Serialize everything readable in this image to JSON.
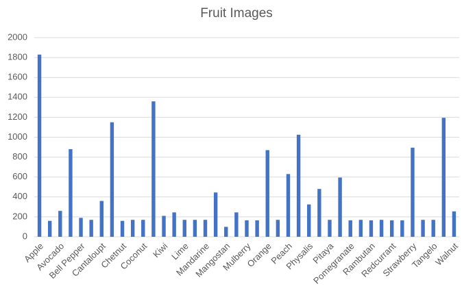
{
  "chart_data": {
    "type": "bar",
    "title": "Fruit Images",
    "categories": [
      "Apple",
      null,
      "Avocado",
      null,
      "Bell Pepper",
      null,
      "Cantaloupt",
      null,
      "Chetnut",
      null,
      "Coconut",
      null,
      "Kiwi",
      null,
      "Lime",
      null,
      "Mandarine",
      null,
      "Mangostan",
      null,
      "Mulberry",
      null,
      "Orange",
      null,
      "Peach",
      null,
      "Physalis",
      null,
      "Pitaya",
      null,
      "Pomegranate",
      null,
      "Rambutan",
      null,
      "Redcurrant",
      null,
      "Strawberry",
      null,
      "Tangelo",
      null,
      "Walnut"
    ],
    "values": [
      1830,
      160,
      260,
      880,
      190,
      170,
      360,
      1150,
      160,
      170,
      170,
      1360,
      210,
      245,
      170,
      170,
      170,
      445,
      100,
      245,
      165,
      165,
      870,
      170,
      630,
      1025,
      325,
      480,
      170,
      595,
      165,
      170,
      165,
      170,
      165,
      165,
      895,
      170,
      170,
      1195,
      255
    ],
    "color": "#4472c4",
    "ylim": [
      0,
      2000
    ],
    "yticks": [
      0,
      200,
      400,
      600,
      800,
      1000,
      1200,
      1400,
      1600,
      1800,
      2000
    ],
    "grid": true
  }
}
